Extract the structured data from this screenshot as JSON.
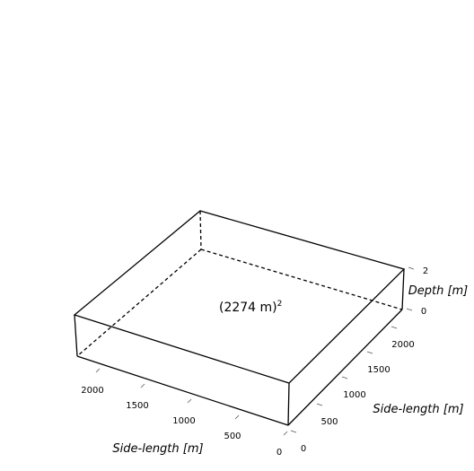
{
  "diagram": {
    "area_label": "(2274 m)",
    "area_exponent": "2",
    "axis_front": {
      "title": "Side-length [m]",
      "ticks": [
        "0",
        "500",
        "1000",
        "1500",
        "2000"
      ]
    },
    "axis_right": {
      "title": "Side-length [m]",
      "ticks": [
        "0",
        "500",
        "1000",
        "1500",
        "2000"
      ]
    },
    "axis_depth": {
      "title": "Depth [m]",
      "ticks": [
        "0",
        "2"
      ]
    }
  }
}
